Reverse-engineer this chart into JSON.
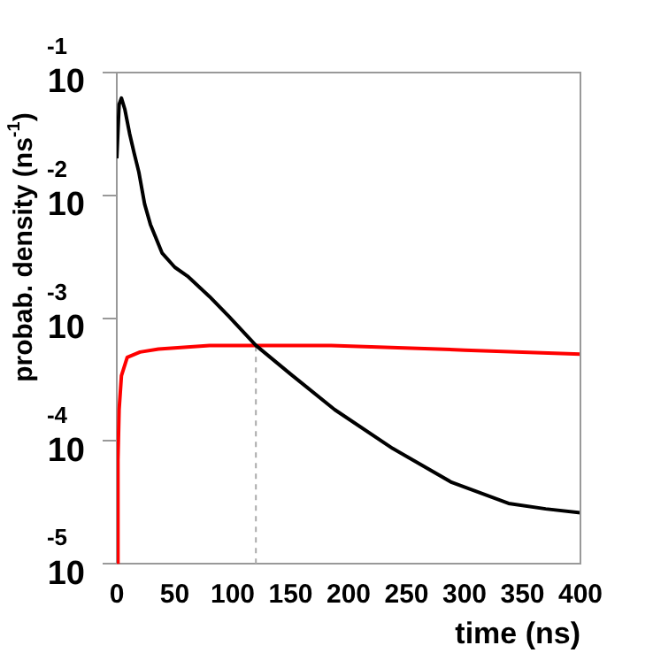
{
  "chart_data": {
    "type": "line",
    "xlabel": "time (ns)",
    "ylabel": "probab. density (ns$^{-1}$)",
    "xlim": [
      0,
      400
    ],
    "xticks": [
      0,
      50,
      100,
      150,
      200,
      250,
      300,
      350,
      400
    ],
    "ylim": [
      1e-05,
      0.1
    ],
    "yticks": [
      {
        "value": 0.1,
        "label": "10$^{-1}$"
      },
      {
        "value": 0.01,
        "label": "10$^{-2}$"
      },
      {
        "value": 0.001,
        "label": "10$^{-3}$"
      },
      {
        "value": 0.0001,
        "label": "10$^{-4}$"
      },
      {
        "value": 1e-05,
        "label": "10$^{-5}$"
      }
    ],
    "log": "y",
    "grid": false,
    "legend": false,
    "marker": "none",
    "series": [
      {
        "color": "#000000",
        "x": [
          0,
          2,
          4,
          7,
          11,
          15,
          19,
          24,
          29,
          39,
          50,
          61,
          80,
          96,
          120,
          150,
          188,
          238,
          289,
          338,
          370,
          400
        ],
        "values": [
          0.02,
          0.055,
          0.062,
          0.05,
          0.032,
          0.022,
          0.0155,
          0.0085,
          0.0058,
          0.0034,
          0.0026,
          0.0022,
          0.0015,
          0.00105,
          0.0006,
          0.00035,
          0.00018,
          8.7e-05,
          4.6e-05,
          3.1e-05,
          2.8e-05,
          2.6e-05
        ]
      },
      {
        "color": "#ff0000",
        "x": [
          0,
          1,
          2,
          4,
          9,
          20,
          36,
          80,
          120,
          185,
          300,
          400
        ],
        "values": [
          1e-05,
          7e-05,
          0.00018,
          0.00034,
          0.00048,
          0.00053,
          0.00056,
          0.0006,
          0.0006,
          0.0006,
          0.00055,
          0.00051
        ]
      },
      {
        "color": "#aaaaaa",
        "line_style": "dashed",
        "x": [
          120,
          120
        ],
        "values": [
          1e-05,
          0.0006
        ]
      }
    ]
  }
}
